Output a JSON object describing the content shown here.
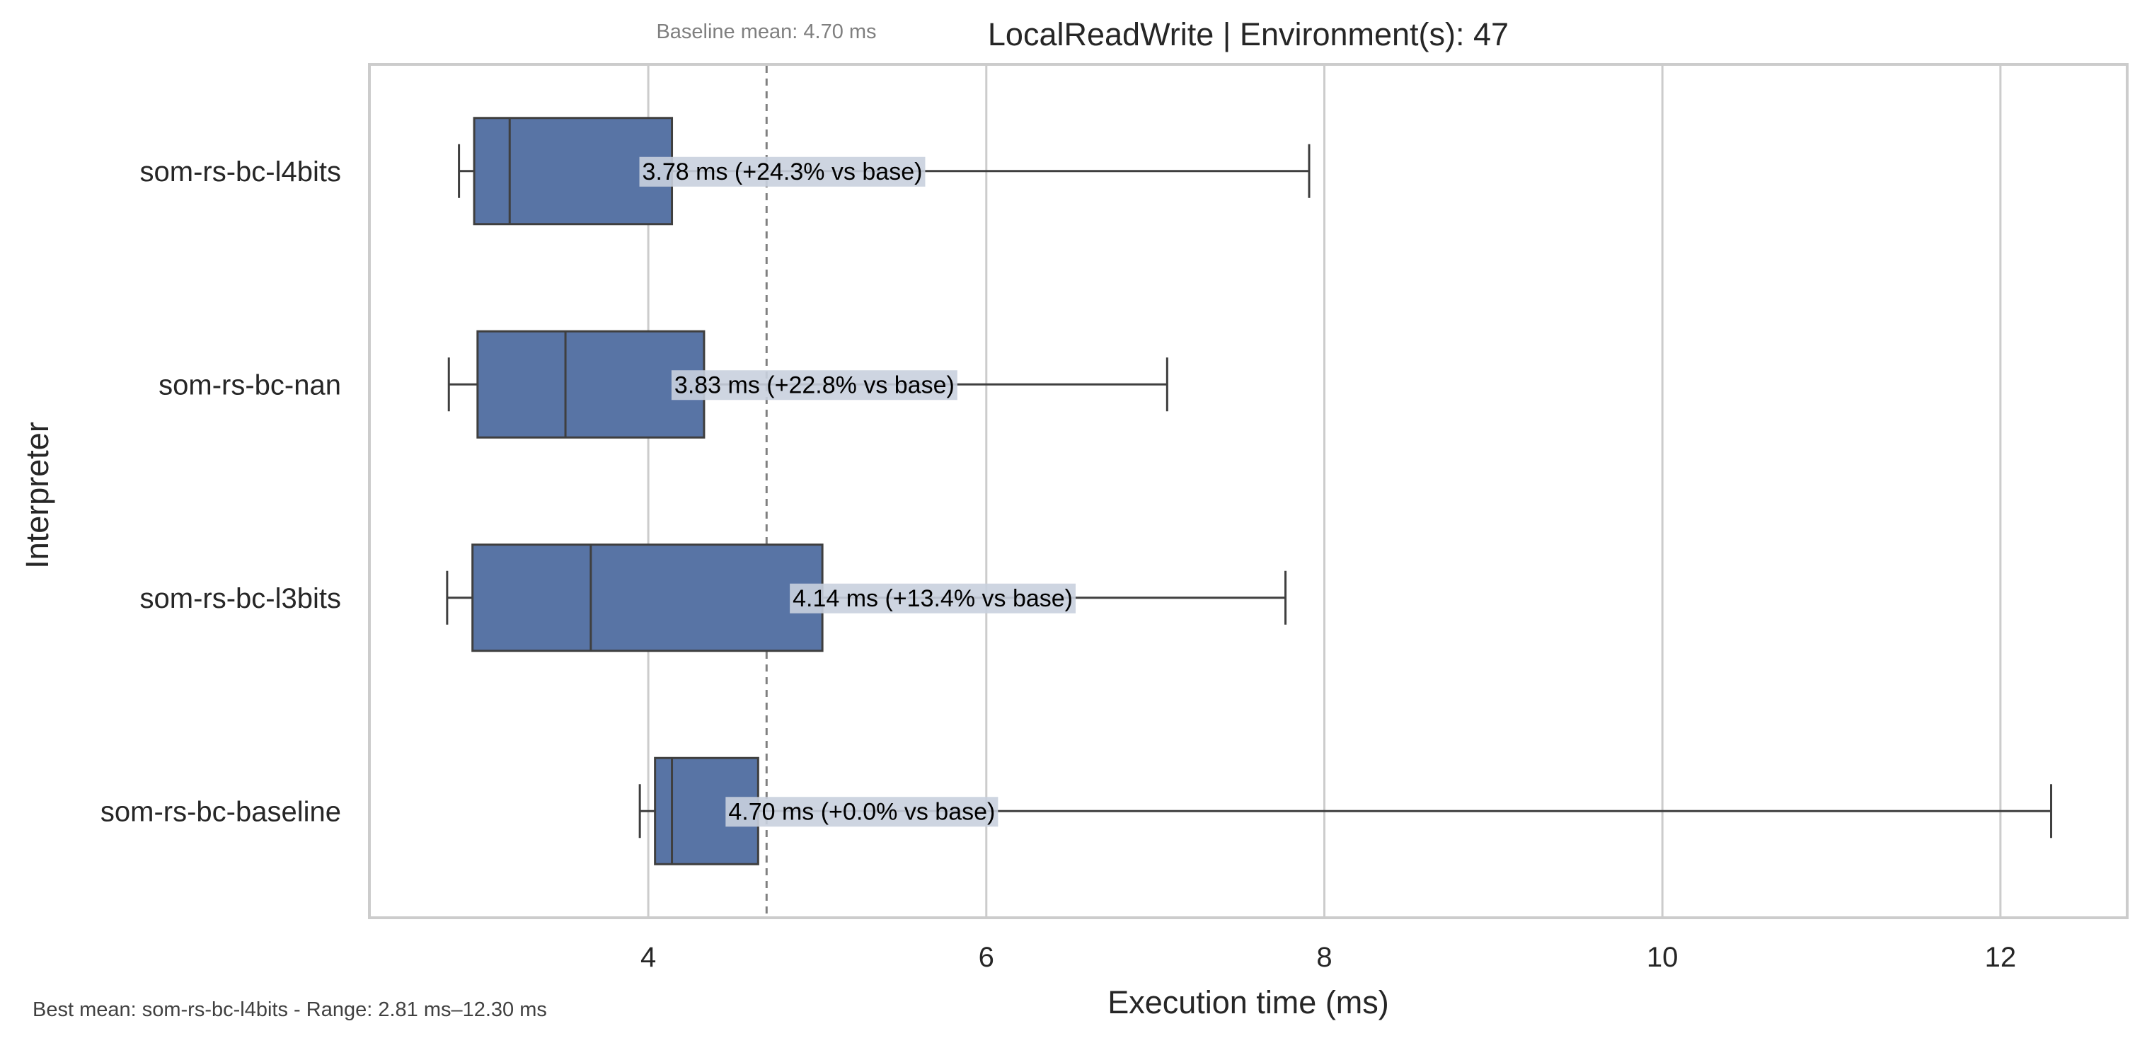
{
  "chart_data": {
    "type": "box",
    "orientation": "horizontal",
    "title": "LocalReadWrite | Environment(s): 47",
    "subtitle": "Baseline mean: 4.70 ms",
    "footer": "Best mean: som-rs-bc-l4bits - Range: 2.81 ms–12.30 ms",
    "xlabel": "Execution time (ms)",
    "ylabel": "Interpreter",
    "xlim": [
      2.35,
      12.75
    ],
    "xticks": [
      4,
      6,
      8,
      10,
      12
    ],
    "grid": "x",
    "baseline_mean": 4.7,
    "categories": [
      "som-rs-bc-l4bits",
      "som-rs-bc-nan",
      "som-rs-bc-l3bits",
      "som-rs-bc-baseline"
    ],
    "boxes": [
      {
        "name": "som-rs-bc-l4bits",
        "whisker_low": 2.88,
        "q1": 2.97,
        "median": 3.18,
        "q3": 4.14,
        "whisker_high": 7.91,
        "mean_label": "3.78 ms",
        "delta_label": "(+24.3% vs base)"
      },
      {
        "name": "som-rs-bc-nan",
        "whisker_low": 2.82,
        "q1": 2.99,
        "median": 3.51,
        "q3": 4.33,
        "whisker_high": 7.07,
        "mean_label": "3.83 ms",
        "delta_label": "(+22.8% vs base)"
      },
      {
        "name": "som-rs-bc-l3bits",
        "whisker_low": 2.81,
        "q1": 2.96,
        "median": 3.66,
        "q3": 5.03,
        "whisker_high": 7.77,
        "mean_label": "4.14 ms",
        "delta_label": "(+13.4% vs base)"
      },
      {
        "name": "som-rs-bc-baseline",
        "whisker_low": 3.95,
        "q1": 4.04,
        "median": 4.14,
        "q3": 4.65,
        "whisker_high": 12.3,
        "mean_label": "4.70 ms",
        "delta_label": "(+0.0% vs base)"
      }
    ],
    "colors": {
      "box_fill": "#5874a5",
      "box_edge": "#3f3f3f",
      "grid": "#cccccc",
      "spine": "#cccccc",
      "baseline_line": "#808080",
      "label_bg": "#c9d0de"
    }
  }
}
